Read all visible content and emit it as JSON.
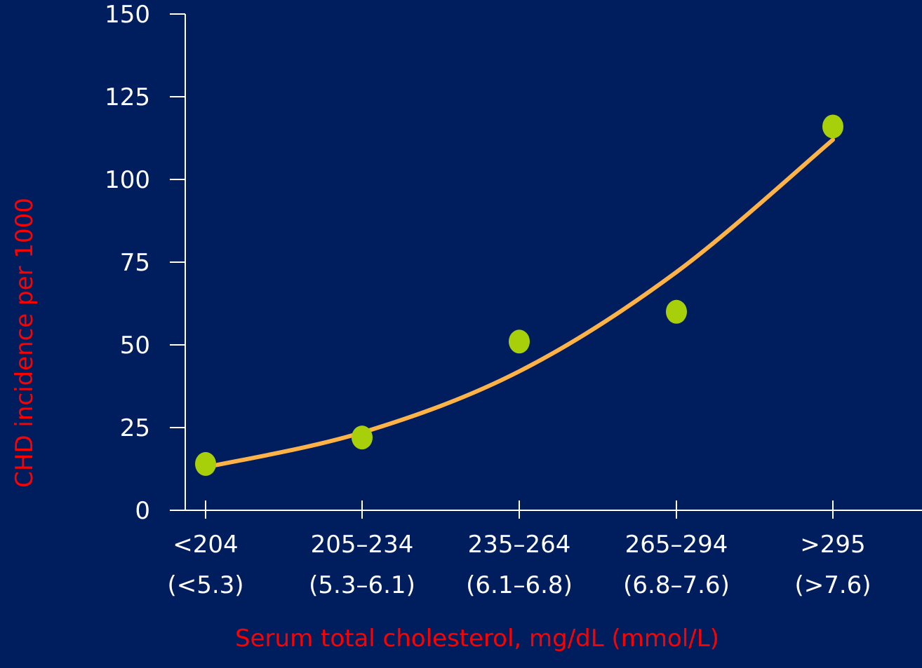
{
  "colors": {
    "background": "#001E5E",
    "axis": "#FFFFFF",
    "tick_text": "#FFFFFF",
    "axis_title": "#FF0000",
    "points": "#A8D00A",
    "trend_line": "#FFB347"
  },
  "chart_data": {
    "type": "scatter",
    "title": "",
    "xlabel": "Serum total cholesterol, mg/dL (mmol/L)",
    "ylabel": "CHD incidence per 1000",
    "ylim": [
      0,
      150
    ],
    "yticks": [
      "0",
      "25",
      "50",
      "75",
      "100",
      "125",
      "150"
    ],
    "categories": [
      {
        "line1": "<204",
        "line2": "(<5.3)"
      },
      {
        "line1": "205–234",
        "line2": "(5.3–6.1)"
      },
      {
        "line1": "235–264",
        "line2": "(6.1–6.8)"
      },
      {
        "line1": "265–294",
        "line2": "(6.8–7.6)"
      },
      {
        "line1": ">295",
        "line2": "(>7.6)"
      }
    ],
    "values": [
      14,
      22,
      51,
      60,
      116
    ],
    "trend": [
      13,
      23.5,
      42,
      72,
      112
    ],
    "grid": false,
    "legend": "none"
  }
}
